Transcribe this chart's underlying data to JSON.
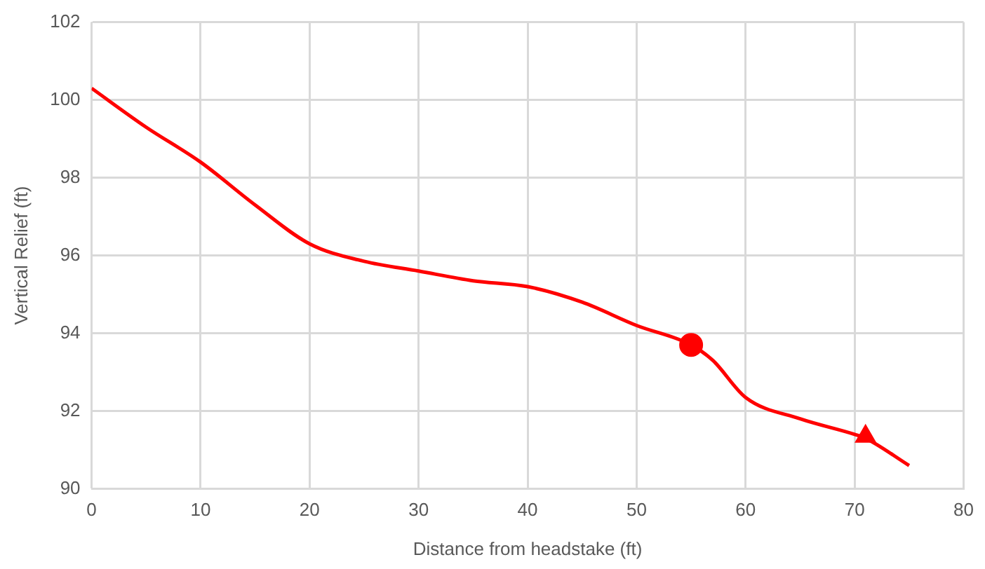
{
  "chart_data": {
    "type": "line",
    "xlabel": "Distance from headstake (ft)",
    "ylabel": "Vertical Relief (ft)",
    "xlim": [
      0,
      80
    ],
    "xticks": [
      0,
      10,
      20,
      30,
      40,
      50,
      60,
      70,
      80
    ],
    "ylim": [
      90,
      102
    ],
    "yticks": [
      90,
      92,
      94,
      96,
      98,
      100,
      102
    ],
    "grid": true,
    "legend": false,
    "series": [
      {
        "color": "#ff0000",
        "marker": "none",
        "x": [
          0,
          5,
          10,
          15,
          20,
          25,
          30,
          35,
          40,
          45,
          50,
          55,
          57,
          60,
          65,
          70,
          71,
          75
        ],
        "values": [
          100.3,
          99.3,
          98.4,
          97.3,
          96.3,
          95.85,
          95.6,
          95.35,
          95.2,
          94.8,
          94.2,
          93.7,
          93.3,
          92.35,
          91.8,
          91.4,
          91.3,
          90.6
        ]
      },
      {
        "type": "scatter",
        "color": "#ff0000",
        "marker": "circle",
        "x": [
          55
        ],
        "values": [
          93.7
        ]
      },
      {
        "type": "scatter",
        "color": "#ff0000",
        "marker": "triangle",
        "x": [
          71
        ],
        "values": [
          91.35
        ]
      }
    ]
  }
}
